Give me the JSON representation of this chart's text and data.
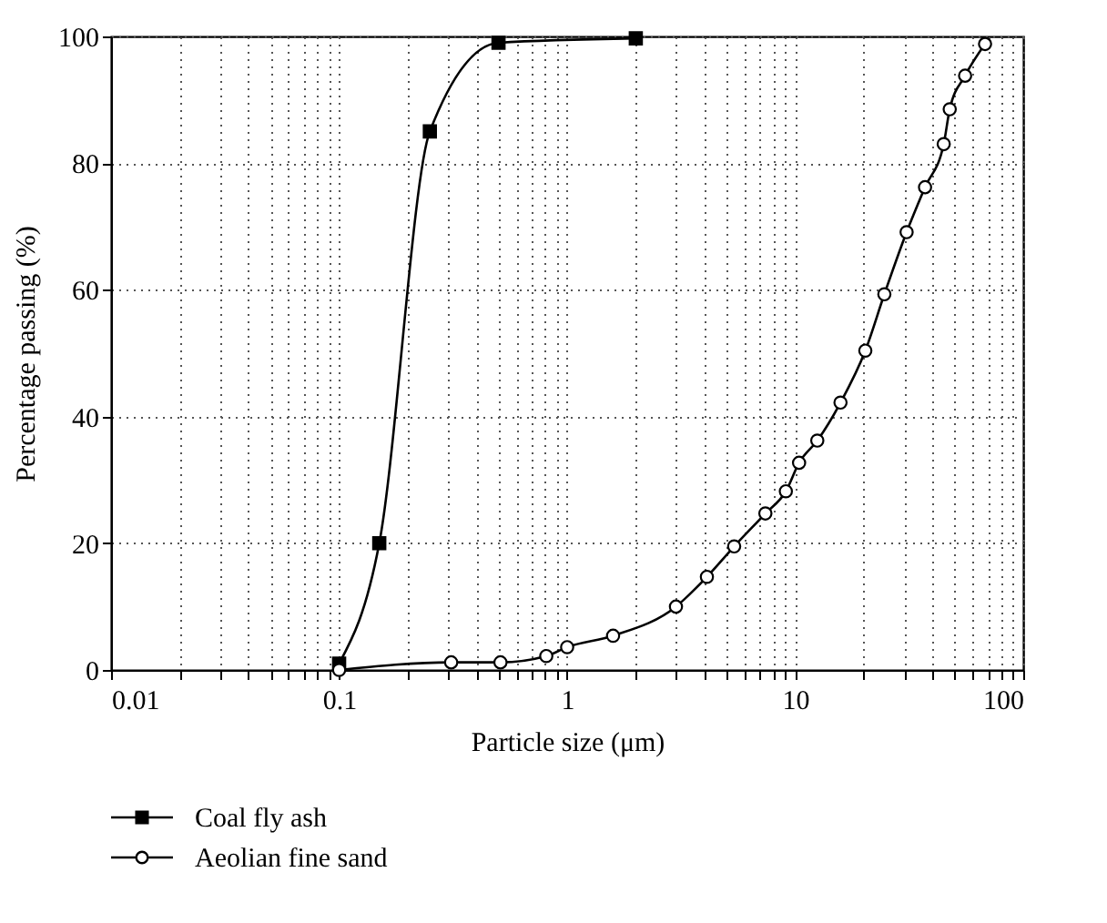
{
  "chart_data": {
    "type": "line",
    "xlabel": "Particle size (μm)",
    "ylabel": "Percentage passing (%)",
    "log": "x",
    "grid": true,
    "legend": "bottom left",
    "line_style": "solid",
    "xlim": [
      0.01,
      100
    ],
    "ylim": [
      0,
      100
    ],
    "xticks": [
      0.01,
      {
        "value": 0.02,
        "label": null
      },
      {
        "value": 0.03,
        "label": null
      },
      {
        "value": 0.04,
        "label": null
      },
      {
        "value": 0.05,
        "label": null
      },
      {
        "value": 0.06,
        "label": null
      },
      {
        "value": 0.07,
        "label": null
      },
      {
        "value": 0.08,
        "label": null
      },
      {
        "value": 0.09,
        "label": null
      },
      0.1,
      {
        "value": 0.2,
        "label": null
      },
      {
        "value": 0.3,
        "label": null
      },
      {
        "value": 0.4,
        "label": null
      },
      {
        "value": 0.5,
        "label": null
      },
      {
        "value": 0.6,
        "label": null
      },
      {
        "value": 0.7,
        "label": null
      },
      {
        "value": 0.8,
        "label": null
      },
      {
        "value": 0.9,
        "label": null
      },
      1,
      {
        "value": 2,
        "label": null
      },
      {
        "value": 3,
        "label": null
      },
      {
        "value": 4,
        "label": null
      },
      {
        "value": 5,
        "label": null
      },
      {
        "value": 6,
        "label": null
      },
      {
        "value": 7,
        "label": null
      },
      {
        "value": 8,
        "label": null
      },
      {
        "value": 9,
        "label": null
      },
      10,
      {
        "value": 20,
        "label": null
      },
      {
        "value": 30,
        "label": null
      },
      {
        "value": 40,
        "label": null
      },
      {
        "value": 50,
        "label": null
      },
      {
        "value": 60,
        "label": null
      },
      {
        "value": 70,
        "label": null
      },
      {
        "value": 80,
        "label": null
      },
      {
        "value": 90,
        "label": null
      },
      100
    ],
    "yticks": [
      0,
      20,
      40,
      60,
      80,
      100
    ],
    "series": [
      {
        "name": "Coal fly ash",
        "color": "#000000",
        "marker": "square",
        "x": [
          0.1,
          0.15,
          0.25,
          0.5,
          2
        ],
        "values": [
          1,
          20,
          85,
          99,
          99.7
        ]
      },
      {
        "name": "Aeolian fine sand",
        "color": "#000000",
        "marker": "circle",
        "x": [
          0.1,
          0.31,
          0.51,
          0.81,
          1,
          1.59,
          3,
          4.1,
          5.4,
          7.4,
          9.1,
          10.4,
          12.5,
          15.8,
          20.3,
          24.6,
          30.8,
          37.1,
          44.8,
          47.6,
          55.6,
          68
        ],
        "values": [
          0,
          1.2,
          1.2,
          2.2,
          3.6,
          5.4,
          10,
          14.7,
          19.5,
          24.7,
          28.2,
          32.7,
          36.2,
          42.2,
          50.4,
          59.3,
          69.1,
          76.2,
          83,
          88.5,
          93.8,
          98.8
        ]
      }
    ]
  }
}
